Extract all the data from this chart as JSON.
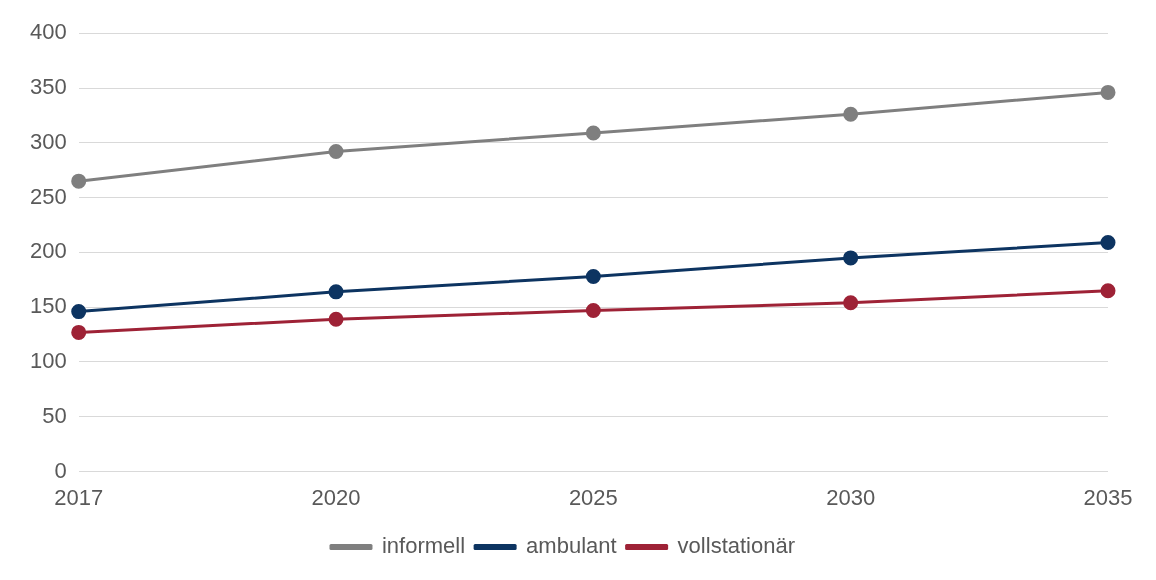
{
  "chart_data": {
    "type": "line",
    "categories": [
      "2017",
      "2020",
      "2025",
      "2030",
      "2035"
    ],
    "series": [
      {
        "name": "informell",
        "color": "#7f7f7f",
        "values": [
          265,
          292,
          309,
          326,
          346
        ]
      },
      {
        "name": "ambulant",
        "color": "#0d3461",
        "values": [
          146,
          164,
          178,
          195,
          209
        ]
      },
      {
        "name": "vollstationär",
        "color": "#9e2236",
        "values": [
          127,
          139,
          147,
          154,
          165
        ]
      }
    ],
    "ylim": [
      0,
      400
    ],
    "yticks": [
      0,
      50,
      100,
      150,
      200,
      250,
      300,
      350,
      400
    ],
    "grid": "y",
    "legend": "bottom",
    "marker": "circle",
    "line_style": "solid"
  }
}
